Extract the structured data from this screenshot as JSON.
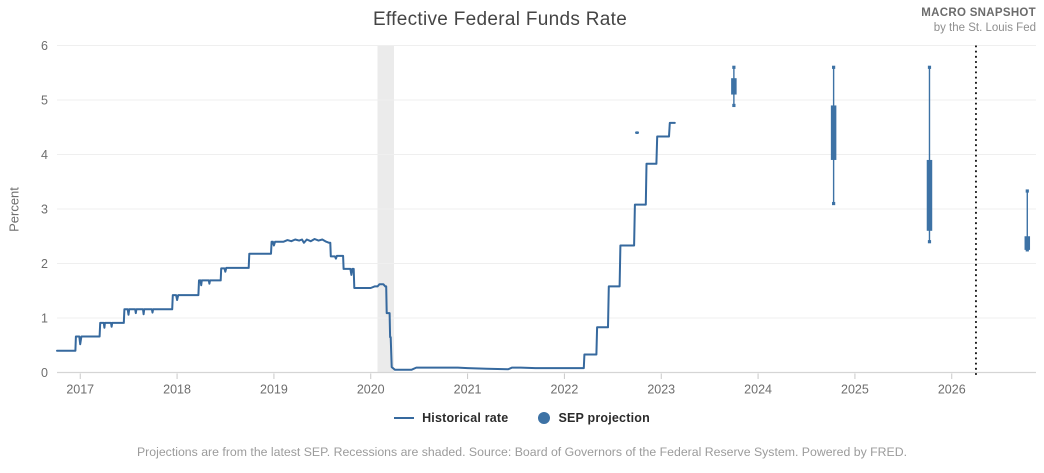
{
  "header": {
    "title": "Effective Federal Funds Rate",
    "brand_line1": "MACRO SNAPSHOT",
    "brand_line2": "by the St. Louis Fed"
  },
  "legend": {
    "historical_label": "Historical rate",
    "projection_label": "SEP projection"
  },
  "footer": {
    "note": "Projections are from the latest SEP. Recessions are shaded. Source: Board of Governors of the Federal Reserve System. Powered by FRED."
  },
  "colors": {
    "line": "#36699e",
    "projection": "#3d72a5",
    "recession": "#ebebeb",
    "grid": "#efefef",
    "axis": "#d5d5d5",
    "tick": "#c9c9c9",
    "tick_label": "#6e6e6e",
    "divider": "#1a1a1a"
  },
  "chart_data": {
    "type": "line",
    "title": "Effective Federal Funds Rate",
    "xlabel": "",
    "ylabel": "Percent",
    "ylim": [
      0,
      6
    ],
    "yticks": [
      0,
      1,
      2,
      3,
      4,
      5,
      6
    ],
    "xticks": [
      2017,
      2018,
      2019,
      2020,
      2021,
      2022,
      2023,
      2024,
      2025,
      2026
    ],
    "xlim": [
      2016.76,
      2026.87
    ],
    "grid": "horizontal",
    "legend_position": "bottom",
    "recession_bands": [
      [
        2020.07,
        2020.24
      ]
    ],
    "projection_divider_x": 2026.25,
    "series": [
      {
        "name": "Historical rate",
        "type": "line",
        "points": [
          [
            2016.76,
            0.4
          ],
          [
            2016.95,
            0.4
          ],
          [
            2016.955,
            0.66
          ],
          [
            2016.99,
            0.66
          ],
          [
            2017.0,
            0.52
          ],
          [
            2017.012,
            0.66
          ],
          [
            2017.2,
            0.66
          ],
          [
            2017.206,
            0.91
          ],
          [
            2017.243,
            0.91
          ],
          [
            2017.249,
            0.82
          ],
          [
            2017.255,
            0.91
          ],
          [
            2017.318,
            0.91
          ],
          [
            2017.324,
            0.84
          ],
          [
            2017.33,
            0.91
          ],
          [
            2017.45,
            0.91
          ],
          [
            2017.456,
            1.16
          ],
          [
            2017.49,
            1.16
          ],
          [
            2017.498,
            1.06
          ],
          [
            2017.506,
            1.16
          ],
          [
            2017.568,
            1.16
          ],
          [
            2017.574,
            1.09
          ],
          [
            2017.58,
            1.16
          ],
          [
            2017.648,
            1.16
          ],
          [
            2017.654,
            1.07
          ],
          [
            2017.66,
            1.16
          ],
          [
            2017.74,
            1.16
          ],
          [
            2017.746,
            1.1
          ],
          [
            2017.752,
            1.16
          ],
          [
            2017.95,
            1.16
          ],
          [
            2017.956,
            1.42
          ],
          [
            2017.99,
            1.42
          ],
          [
            2018.0,
            1.33
          ],
          [
            2018.012,
            1.42
          ],
          [
            2018.22,
            1.42
          ],
          [
            2018.226,
            1.69
          ],
          [
            2018.243,
            1.69
          ],
          [
            2018.249,
            1.6
          ],
          [
            2018.255,
            1.69
          ],
          [
            2018.328,
            1.69
          ],
          [
            2018.334,
            1.63
          ],
          [
            2018.34,
            1.69
          ],
          [
            2018.45,
            1.69
          ],
          [
            2018.456,
            1.91
          ],
          [
            2018.49,
            1.91
          ],
          [
            2018.498,
            1.85
          ],
          [
            2018.508,
            1.92
          ],
          [
            2018.74,
            1.92
          ],
          [
            2018.746,
            2.18
          ],
          [
            2018.97,
            2.18
          ],
          [
            2018.976,
            2.4
          ],
          [
            2018.99,
            2.4
          ],
          [
            2019.0,
            2.33
          ],
          [
            2019.012,
            2.4
          ],
          [
            2019.1,
            2.4
          ],
          [
            2019.14,
            2.43
          ],
          [
            2019.18,
            2.41
          ],
          [
            2019.22,
            2.44
          ],
          [
            2019.26,
            2.42
          ],
          [
            2019.29,
            2.44
          ],
          [
            2019.31,
            2.38
          ],
          [
            2019.34,
            2.44
          ],
          [
            2019.38,
            2.41
          ],
          [
            2019.42,
            2.45
          ],
          [
            2019.46,
            2.42
          ],
          [
            2019.5,
            2.44
          ],
          [
            2019.54,
            2.4
          ],
          [
            2019.57,
            2.38
          ],
          [
            2019.582,
            2.38
          ],
          [
            2019.588,
            2.13
          ],
          [
            2019.63,
            2.13
          ],
          [
            2019.64,
            2.09
          ],
          [
            2019.65,
            2.14
          ],
          [
            2019.7,
            2.14
          ],
          [
            2019.714,
            2.14
          ],
          [
            2019.72,
            1.9
          ],
          [
            2019.79,
            1.9
          ],
          [
            2019.8,
            1.79
          ],
          [
            2019.81,
            1.9
          ],
          [
            2019.824,
            1.9
          ],
          [
            2019.83,
            1.55
          ],
          [
            2019.9,
            1.55
          ],
          [
            2020.0,
            1.55
          ],
          [
            2020.04,
            1.58
          ],
          [
            2020.07,
            1.58
          ],
          [
            2020.09,
            1.62
          ],
          [
            2020.13,
            1.62
          ],
          [
            2020.15,
            1.58
          ],
          [
            2020.16,
            1.58
          ],
          [
            2020.165,
            1.09
          ],
          [
            2020.195,
            1.09
          ],
          [
            2020.2,
            0.65
          ],
          [
            2020.206,
            0.65
          ],
          [
            2020.216,
            0.1
          ],
          [
            2020.25,
            0.05
          ],
          [
            2020.42,
            0.05
          ],
          [
            2020.47,
            0.09
          ],
          [
            2020.9,
            0.09
          ],
          [
            2021.0,
            0.08
          ],
          [
            2021.2,
            0.07
          ],
          [
            2021.42,
            0.06
          ],
          [
            2021.46,
            0.09
          ],
          [
            2021.55,
            0.09
          ],
          [
            2021.7,
            0.08
          ],
          [
            2022.0,
            0.08
          ],
          [
            2022.2,
            0.08
          ],
          [
            2022.206,
            0.33
          ],
          [
            2022.33,
            0.33
          ],
          [
            2022.338,
            0.83
          ],
          [
            2022.45,
            0.83
          ],
          [
            2022.458,
            1.58
          ],
          [
            2022.57,
            1.58
          ],
          [
            2022.578,
            2.33
          ],
          [
            2022.72,
            2.33
          ],
          [
            2022.728,
            3.08
          ],
          [
            2022.84,
            3.08
          ],
          [
            2022.848,
            3.83
          ],
          [
            2022.95,
            3.83
          ],
          [
            2022.958,
            4.33
          ],
          [
            2023.08,
            4.33
          ],
          [
            2023.088,
            4.58
          ],
          [
            2023.14,
            4.58
          ]
        ]
      },
      {
        "name": "SEP projection",
        "type": "range-box",
        "points": [
          {
            "x": 2022.75,
            "range": [
              4.4,
              4.4
            ],
            "central": [
              4.4,
              4.4
            ]
          },
          {
            "x": 2023.75,
            "range": [
              4.9,
              5.6
            ],
            "central": [
              5.1,
              5.4
            ]
          },
          {
            "x": 2024.78,
            "range": [
              3.1,
              5.6
            ],
            "central": [
              3.9,
              4.9
            ]
          },
          {
            "x": 2025.77,
            "range": [
              2.4,
              5.6
            ],
            "central": [
              2.6,
              3.9
            ]
          },
          {
            "x": 2026.78,
            "range": [
              2.25,
              3.33
            ],
            "central": [
              2.25,
              2.5
            ]
          }
        ]
      }
    ]
  }
}
